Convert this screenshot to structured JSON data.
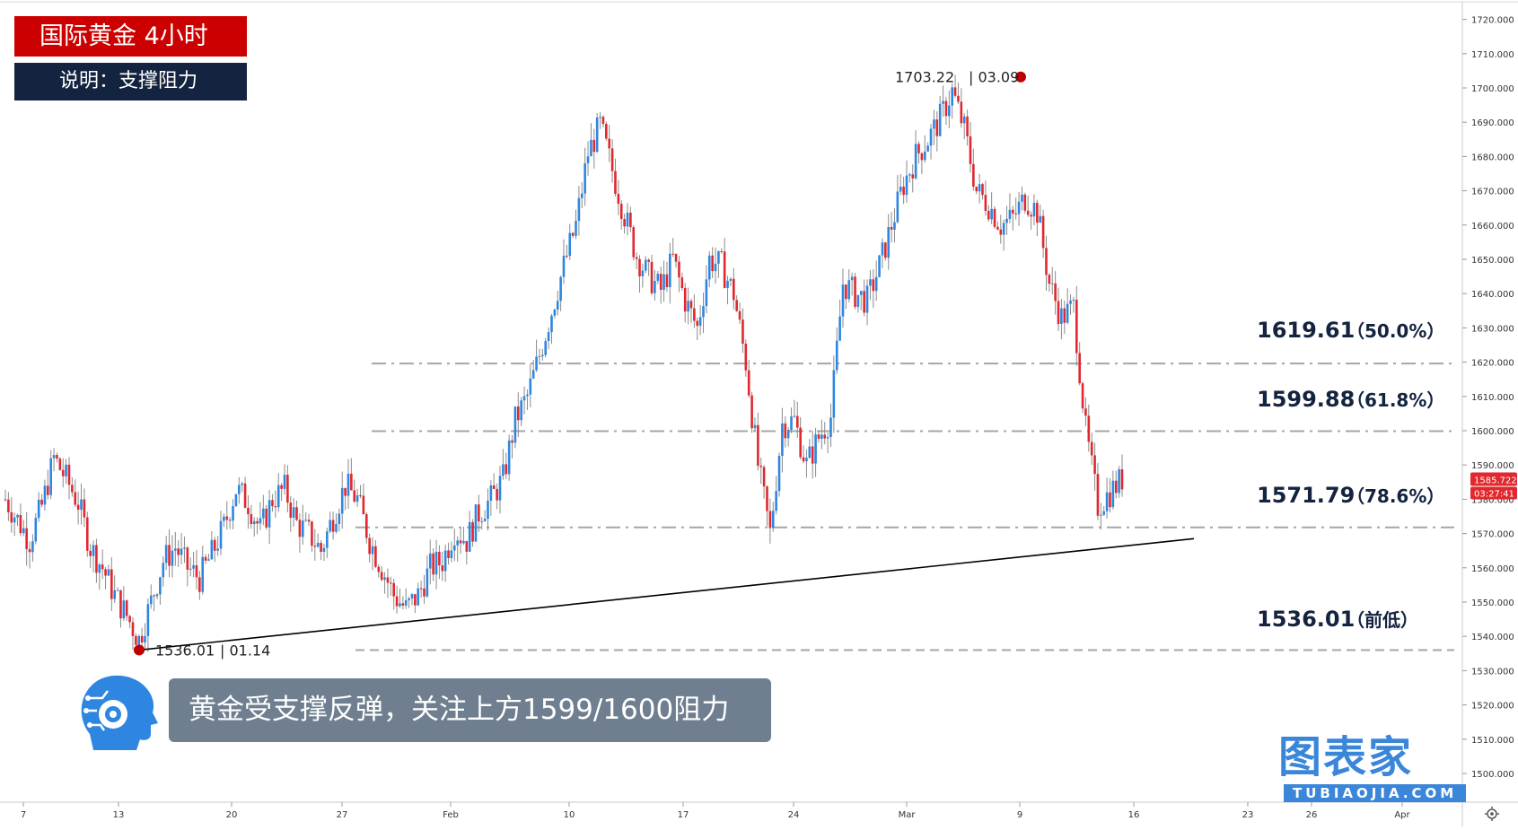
{
  "header": {
    "title": "国际黄金 4小时",
    "subtitle": "说明：支撑阻力"
  },
  "callout": {
    "text": "黄金受支撑反弹，关注上方1599/1600阻力"
  },
  "watermark": {
    "main": "图表家",
    "sub": "TUBIAOJIA.COM"
  },
  "colors": {
    "up": "#2f86e0",
    "down": "#e0282e",
    "title_bg": "#cc0000",
    "subtitle_bg": "#14233f",
    "price_tag": "#e0282e",
    "level_line": "#a6a6a6",
    "marker": "#c00000"
  },
  "chart_data": {
    "type": "candlestick",
    "y_axis": {
      "min": 1495,
      "max": 1725,
      "ticks": [
        "1500.000",
        "1510.000",
        "1520.000",
        "1530.000",
        "1540.000",
        "1550.000",
        "1560.000",
        "1570.000",
        "1580.000",
        "1590.000",
        "1600.000",
        "1610.000",
        "1620.000",
        "1630.000",
        "1640.000",
        "1650.000",
        "1660.000",
        "1670.000",
        "1680.000",
        "1690.000",
        "1700.000",
        "1710.000",
        "1720.000"
      ]
    },
    "x_axis": {
      "ticks": [
        "7",
        "13",
        "20",
        "27",
        "Feb",
        "10",
        "17",
        "24",
        "Mar",
        "9",
        "16",
        "23",
        "26",
        "Apr"
      ]
    },
    "current_price": {
      "value": "1585.722",
      "countdown": "03:27:41"
    },
    "levels": [
      {
        "price": 1619.61,
        "label": "1619.61",
        "pct": "（50.0%）"
      },
      {
        "price": 1599.88,
        "label": "1599.88",
        "pct": "（61.8%）"
      },
      {
        "price": 1571.79,
        "label": "1571.79",
        "pct": "（78.6%）"
      },
      {
        "price": 1536.01,
        "label": "1536.01",
        "pct": "（前低）"
      }
    ],
    "markers": [
      {
        "price": 1703.22,
        "value": "1703.22",
        "date": "03.09"
      },
      {
        "price": 1536.01,
        "value": "1536.01",
        "date": "01.14"
      }
    ],
    "trendline": {
      "from_price": 1536.01,
      "to_price": 1568.5
    },
    "path_closes": [
      1580,
      1574,
      1568,
      1578,
      1592,
      1586,
      1579,
      1566,
      1560,
      1552,
      1546,
      1539,
      1550,
      1562,
      1566,
      1560,
      1557,
      1564,
      1572,
      1583,
      1579,
      1571,
      1580,
      1583,
      1573,
      1570,
      1565,
      1575,
      1584,
      1580,
      1568,
      1560,
      1552,
      1548,
      1552,
      1560,
      1562,
      1571,
      1568,
      1576,
      1580,
      1586,
      1603,
      1610,
      1622,
      1635,
      1648,
      1660,
      1681,
      1689,
      1676,
      1663,
      1651,
      1645,
      1641,
      1650,
      1638,
      1630,
      1650,
      1648,
      1640,
      1620,
      1590,
      1570,
      1602,
      1603,
      1590,
      1598,
      1604,
      1643,
      1640,
      1638,
      1648,
      1660,
      1672,
      1680,
      1685,
      1691,
      1699,
      1688,
      1670,
      1666,
      1660,
      1662,
      1668,
      1664,
      1643,
      1633,
      1636,
      1600,
      1578,
      1582,
      1586
    ]
  }
}
